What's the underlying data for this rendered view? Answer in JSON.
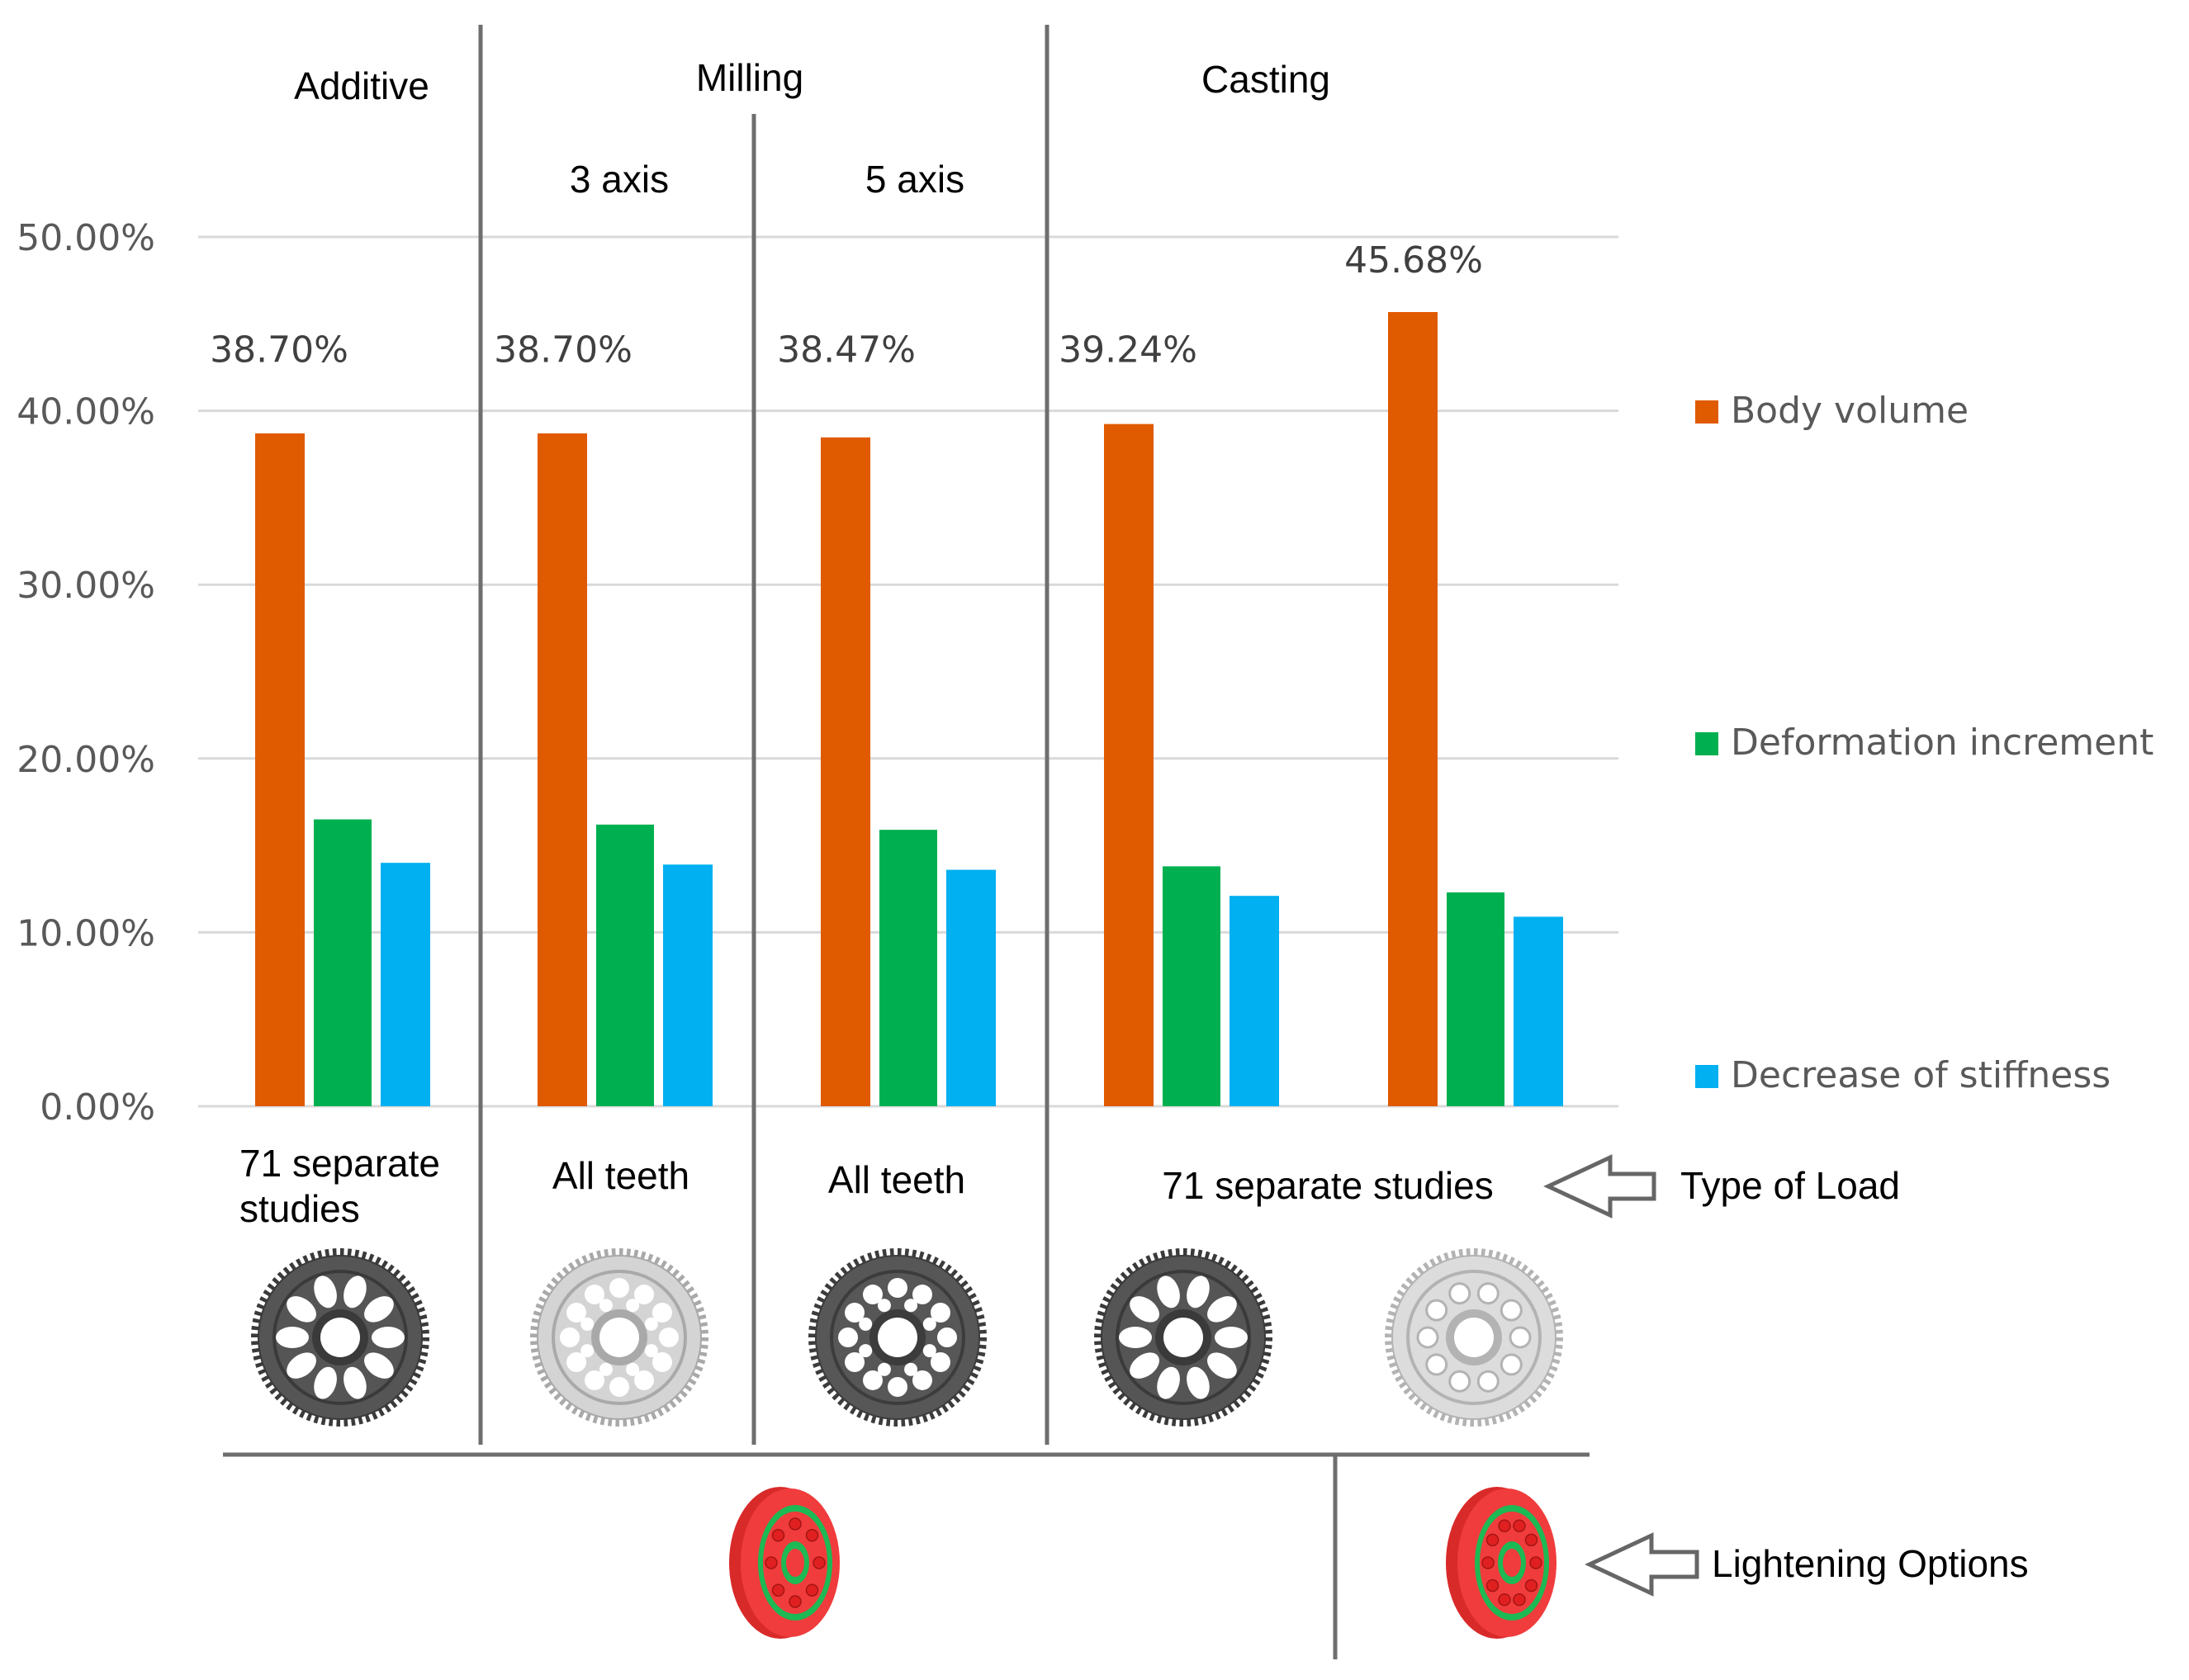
{
  "chart_data": {
    "type": "bar",
    "categories": [
      "Additive",
      "3 axis",
      "5 axis",
      "Casting",
      "Casting"
    ],
    "series": [
      {
        "name": "Body volume",
        "color": "#E05A00",
        "values": [
          38.7,
          38.7,
          38.47,
          39.24,
          45.68
        ]
      },
      {
        "name": "Deformation increment",
        "color": "#00B050",
        "values": [
          16.5,
          16.2,
          15.9,
          13.8,
          12.3
        ]
      },
      {
        "name": "Decrease of stiffness",
        "color": "#00B0F0",
        "values": [
          14.0,
          13.9,
          13.6,
          12.1,
          10.9
        ]
      }
    ],
    "data_labels": [
      "38.70%",
      "38.70%",
      "38.47%",
      "39.24%",
      "45.68%"
    ],
    "ylim": [
      0,
      50
    ],
    "y_ticks": [
      "0.00%",
      "10.00%",
      "20.00%",
      "30.00%",
      "40.00%",
      "50.00%"
    ],
    "grid": true,
    "legend_position": "right"
  },
  "headers": {
    "additive": "Additive",
    "milling": "Milling",
    "three_axis": "3 axis",
    "five_axis": "5 axis",
    "casting": "Casting"
  },
  "load_types": {
    "additive_line1": "71 separate",
    "additive_line2": "studies",
    "milling_3": "All teeth",
    "milling_5": "All teeth",
    "casting": "71 separate studies"
  },
  "annotations": {
    "type_of_load": "Type of Load",
    "lightening_options": "Lightening  Options"
  },
  "gear_icons": [
    "gear-spoked-dark-icon",
    "gear-lattice-light-icon",
    "gear-lattice-dark-icon",
    "gear-spoked-dark-icon",
    "gear-holes-light-icon"
  ],
  "colors": {
    "axis_text": "#595959",
    "gridline": "#D9D9D9",
    "divider": "#6E6E6E",
    "ring_red": "#F03C3C",
    "ring_green": "#1DB954"
  }
}
